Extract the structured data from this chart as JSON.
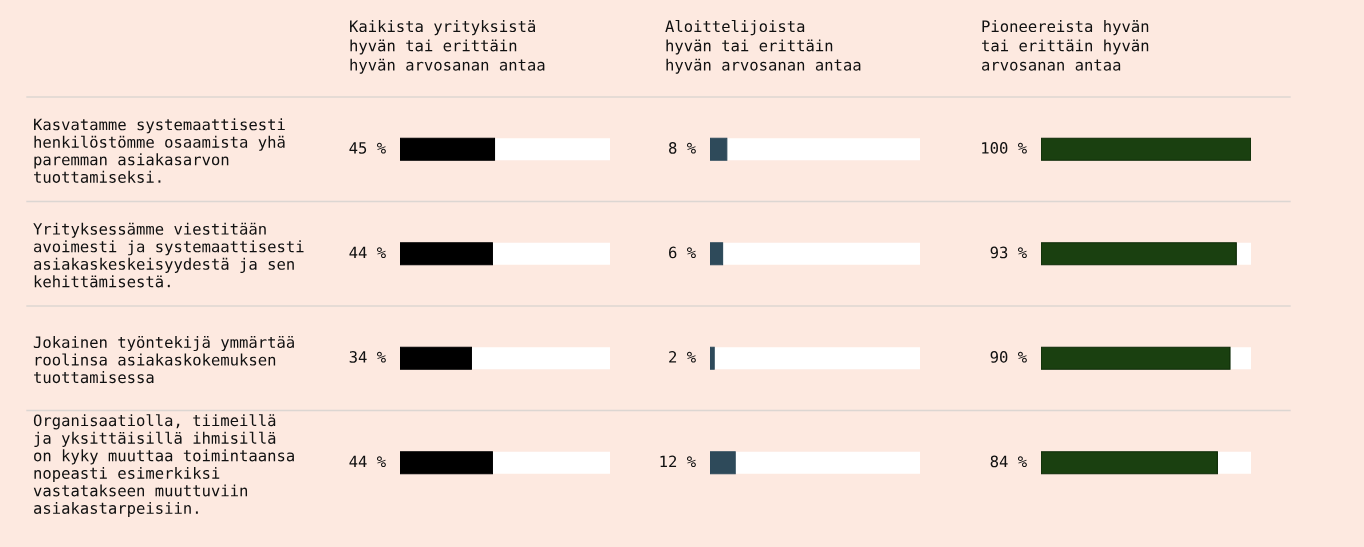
{
  "chart_data": [
    {
      "type": "bar",
      "orientation": "horizontal",
      "title": "Kaikista yrityksistä\nhyvän tai erittäin\nhyvän arvosanan antaa",
      "categories": [
        "Kasvatamme systemaattisesti\nhenkilöstömme osaamista yhä\nparemman asiakasarvon\ntuottamiseksi.",
        "Yrityksessämme viestitään\navoimesti ja systemaattisesti\nasiakaskeskeisyydestä ja sen\nkehittämisestä.",
        "Jokainen työntekijä ymmärtää\nroolinsa asiakaskokemuksen\ntuottamisessa",
        "Organisaatiolla, tiimeillä\nja yksittäisillä ihmisillä\non kyky muuttaa toimintaansa\nnopeasti esimerkiksi\nvastatakseen muuttuviin\nasiakastarpeisiin."
      ],
      "values": [
        45,
        44,
        34,
        44
      ],
      "value_labels": [
        "45 %",
        "44 %",
        "34 %",
        "44 %"
      ],
      "color": "#000000",
      "xlim": [
        0,
        100
      ],
      "tick_labels": "y"
    },
    {
      "type": "bar",
      "orientation": "horizontal",
      "title": "Aloittelijoista\nhyvän tai erittäin\nhyvän arvosanan antaa",
      "categories": [
        null,
        null,
        null,
        null
      ],
      "values": [
        8,
        6,
        2,
        12
      ],
      "value_labels": [
        "8 %",
        "6 %",
        "2 %",
        "12 %"
      ],
      "color": "#2e4a5a",
      "xlim": [
        0,
        100
      ],
      "tick_labels": false
    },
    {
      "type": "bar",
      "orientation": "horizontal",
      "title": "Pioneereista hyvän\ntai erittäin hyvän\narvosanan antaa",
      "categories": [
        null,
        null,
        null,
        null
      ],
      "values": [
        100,
        93,
        90,
        84
      ],
      "value_labels": [
        "100 %",
        "93 %",
        "90 %",
        "84 %"
      ],
      "color": "#1a4010",
      "xlim": [
        0,
        100
      ],
      "tick_labels": false
    }
  ]
}
